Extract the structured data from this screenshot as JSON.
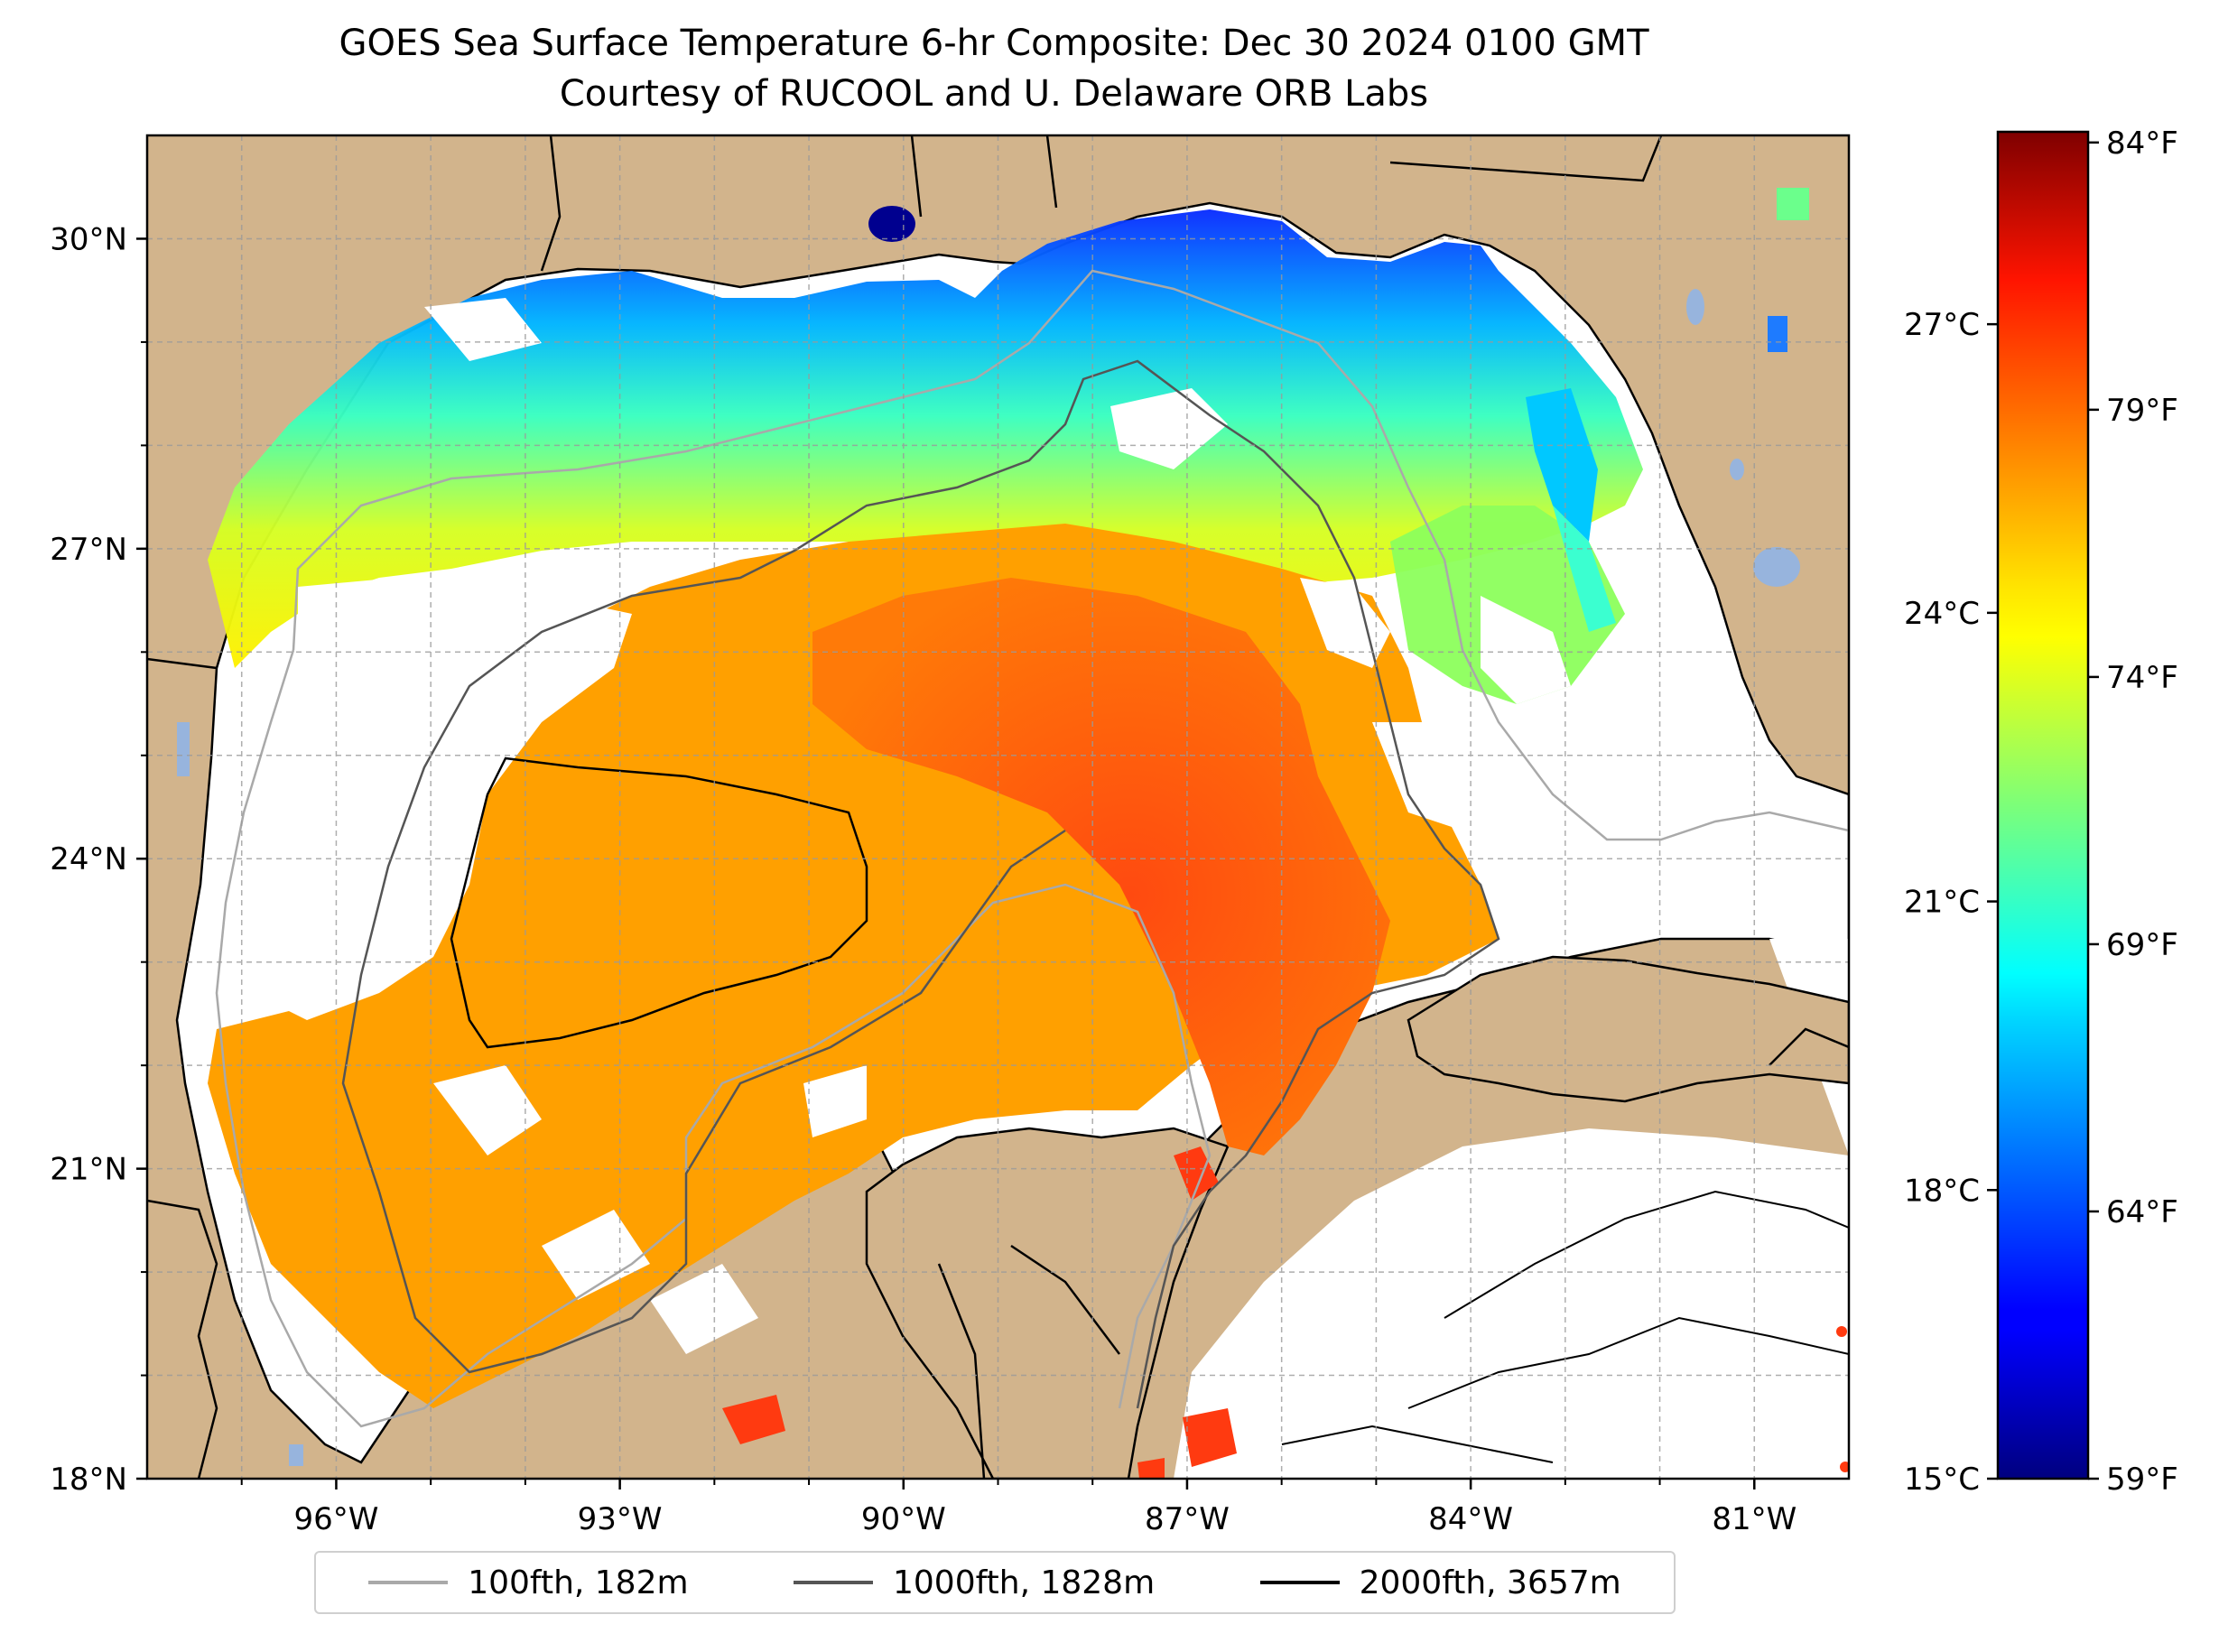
{
  "title": {
    "line1": "GOES Sea Surface Temperature 6-hr Composite: Dec 30 2024 0100 GMT",
    "line2": "Courtesy of RUCOOL and U. Delaware ORB Labs"
  },
  "map": {
    "lon_range": [
      -98,
      -80
    ],
    "lat_range": [
      18,
      31
    ],
    "lon_ticks": [
      {
        "value": -96,
        "label": "96°W"
      },
      {
        "value": -93,
        "label": "93°W"
      },
      {
        "value": -90,
        "label": "90°W"
      },
      {
        "value": -87,
        "label": "87°W"
      },
      {
        "value": -84,
        "label": "84°W"
      },
      {
        "value": -81,
        "label": "81°W"
      }
    ],
    "lat_ticks": [
      {
        "value": 18,
        "label": "18°N"
      },
      {
        "value": 21,
        "label": "21°N"
      },
      {
        "value": 24,
        "label": "24°N"
      },
      {
        "value": 27,
        "label": "27°N"
      },
      {
        "value": 30,
        "label": "30°N"
      }
    ],
    "grid": "dashed, every 1°",
    "colors": {
      "land": "#d2b48c",
      "no_data": "#ffffff",
      "inland_water": "#97b4dd",
      "coastline": "#000000"
    }
  },
  "colorbar": {
    "colormap": "jet",
    "range_c": [
      15,
      29
    ],
    "celsius_ticks": [
      {
        "value": 15,
        "label": "15°C"
      },
      {
        "value": 18,
        "label": "18°C"
      },
      {
        "value": 21,
        "label": "21°C"
      },
      {
        "value": 24,
        "label": "24°C"
      },
      {
        "value": 27,
        "label": "27°C"
      }
    ],
    "fahrenheit_ticks": [
      {
        "value": 59,
        "label": "59°F"
      },
      {
        "value": 64,
        "label": "64°F"
      },
      {
        "value": 69,
        "label": "69°F"
      },
      {
        "value": 74,
        "label": "74°F"
      },
      {
        "value": 79,
        "label": "79°F"
      },
      {
        "value": 84,
        "label": "84°F"
      }
    ]
  },
  "legend": {
    "placement": "bottom-center, below map",
    "items": [
      {
        "label": "100fth, 182m",
        "color": "#a9a9a9"
      },
      {
        "label": "1000fth, 1828m",
        "color": "#555555"
      },
      {
        "label": "2000fth, 3657m",
        "color": "#000000"
      }
    ]
  }
}
